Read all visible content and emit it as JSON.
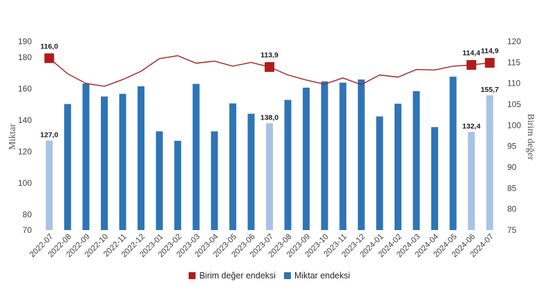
{
  "chart_data": {
    "type": "bar+line",
    "categories": [
      "2022-07",
      "2022-08",
      "2022-09",
      "2022-10",
      "2022-11",
      "2022-12",
      "2023-01",
      "2023-02",
      "2023-03",
      "2023-04",
      "2023-05",
      "2023-06",
      "2023-07",
      "2023-08",
      "2023-09",
      "2023-10",
      "2023-11",
      "2023-12",
      "2024-01",
      "2024-02",
      "2024-03",
      "2024-04",
      "2024-05",
      "2024-06",
      "2024-07"
    ],
    "bar_series": {
      "name": "Miktar endeksi",
      "axis": "left",
      "values": [
        127.0,
        150.2,
        163.2,
        155.0,
        156.7,
        161.5,
        132.8,
        126.8,
        163.0,
        132.8,
        150.6,
        144.0,
        138.0,
        152.8,
        160.6,
        164.6,
        163.8,
        165.8,
        142.3,
        150.4,
        158.4,
        135.5,
        167.6,
        132.4,
        155.7
      ],
      "color": "#2E75B6",
      "highlight_color": "#A9C3E6",
      "highlighted_categories": [
        "2022-07",
        "2023-07",
        "2024-06",
        "2024-07"
      ]
    },
    "line_series": {
      "name": "Birim değer endeksi",
      "axis": "right",
      "values": [
        116.0,
        112.3,
        110.0,
        109.3,
        110.9,
        112.9,
        115.9,
        116.6,
        114.8,
        115.3,
        114.1,
        115.0,
        113.9,
        112.0,
        110.8,
        109.8,
        111.3,
        109.7,
        112.0,
        111.5,
        113.3,
        113.2,
        114.1,
        114.4,
        114.9
      ],
      "color": "#A41F1F",
      "marker_color": "#B01C1C",
      "marked_categories": [
        "2022-07",
        "2023-07",
        "2024-06",
        "2024-07"
      ]
    },
    "data_labels": {
      "bars": [
        {
          "category": "2022-07",
          "text": "127,0"
        },
        {
          "category": "2023-07",
          "text": "138,0"
        },
        {
          "category": "2024-06",
          "text": "132,4"
        },
        {
          "category": "2024-07",
          "text": "155,7"
        }
      ],
      "line": [
        {
          "category": "2022-07",
          "text": "116,0"
        },
        {
          "category": "2023-07",
          "text": "113,9"
        },
        {
          "category": "2024-06",
          "text": "114,4"
        },
        {
          "category": "2024-07",
          "text": "114,9"
        }
      ]
    },
    "ylabel": "Miktar",
    "y2label": "Birim değer",
    "ylim": [
      70,
      190
    ],
    "yticks": [
      70,
      80,
      100,
      120,
      140,
      160,
      180,
      190
    ],
    "y2lim": [
      75,
      120
    ],
    "y2ticks": [
      75,
      80,
      85,
      90,
      95,
      100,
      105,
      110,
      115,
      120
    ],
    "grid": false,
    "legend": "bottom-center",
    "legend_entries": [
      "Birim değer endeksi",
      "Miktar endeksi"
    ]
  }
}
